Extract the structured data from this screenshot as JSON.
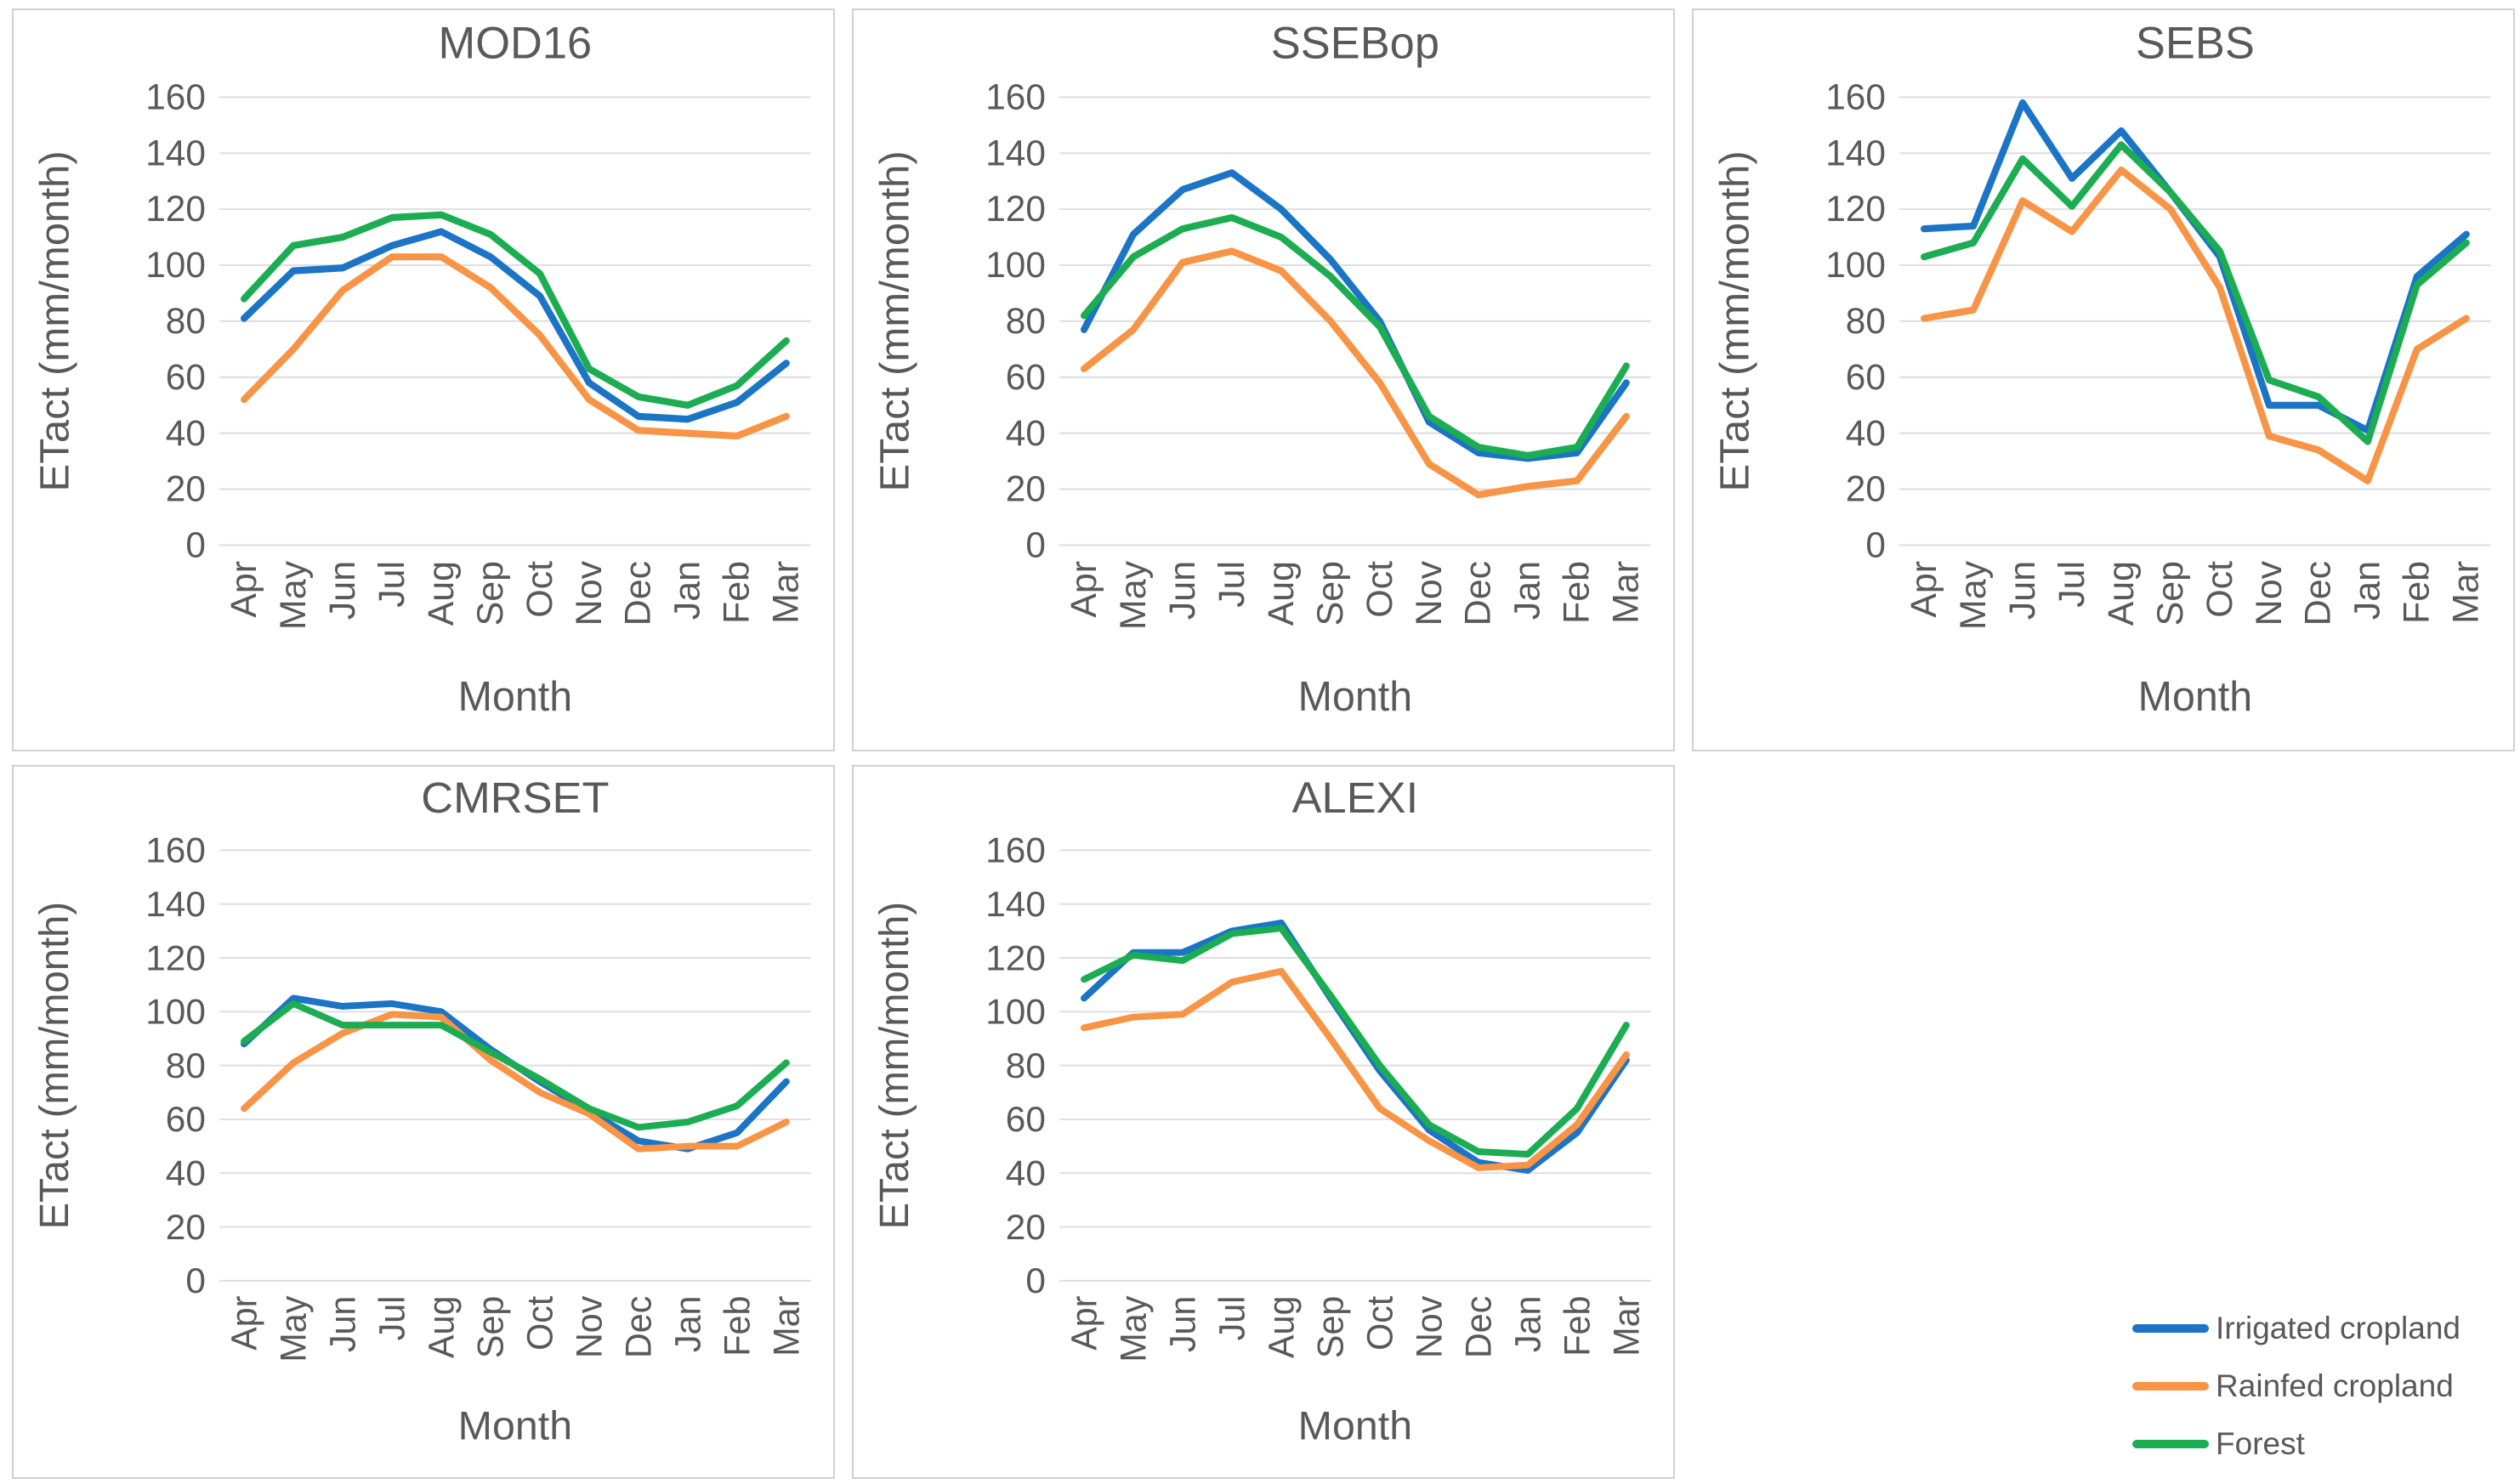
{
  "figure": {
    "background": "#FFFFFF",
    "text_color": "#595959",
    "grid_color": "#DEDEDE",
    "panel_border_color": "#D0D0D0"
  },
  "legend": {
    "position": "bottom-right",
    "items": [
      {
        "label": "Irrigated cropland",
        "color": "#1B74C5"
      },
      {
        "label": "Rainfed cropland",
        "color": "#F79446"
      },
      {
        "label": "Forest",
        "color": "#1CAD52"
      }
    ]
  },
  "chart_data": [
    {
      "type": "line",
      "title": "MOD16",
      "xlabel": "Month",
      "ylabel": "ETact (mm/month)",
      "ylim": [
        0,
        160
      ],
      "yticks": [
        0,
        20,
        40,
        60,
        80,
        100,
        120,
        140,
        160
      ],
      "grid": true,
      "categories": [
        "Apr",
        "May",
        "Jun",
        "Jul",
        "Aug",
        "Sep",
        "Oct",
        "Nov",
        "Dec",
        "Jan",
        "Feb",
        "Mar"
      ],
      "series": [
        {
          "name": "Irrigated cropland",
          "color": "#1B74C5",
          "values": [
            81,
            98,
            99,
            107,
            112,
            103,
            89,
            58,
            46,
            45,
            51,
            65
          ]
        },
        {
          "name": "Rainfed cropland",
          "color": "#F79446",
          "values": [
            52,
            70,
            91,
            103,
            103,
            92,
            75,
            52,
            41,
            40,
            39,
            46
          ]
        },
        {
          "name": "Forest",
          "color": "#1CAD52",
          "values": [
            88,
            107,
            110,
            117,
            118,
            111,
            97,
            63,
            53,
            50,
            57,
            73
          ]
        }
      ]
    },
    {
      "type": "line",
      "title": "SSEBop",
      "xlabel": "Month",
      "ylabel": "ETact (mm/month)",
      "ylim": [
        0,
        160
      ],
      "yticks": [
        0,
        20,
        40,
        60,
        80,
        100,
        120,
        140,
        160
      ],
      "grid": true,
      "categories": [
        "Apr",
        "May",
        "Jun",
        "Jul",
        "Aug",
        "Sep",
        "Oct",
        "Nov",
        "Dec",
        "Jan",
        "Feb",
        "Mar"
      ],
      "series": [
        {
          "name": "Irrigated cropland",
          "color": "#1B74C5",
          "values": [
            77,
            111,
            127,
            133,
            120,
            102,
            80,
            44,
            33,
            31,
            33,
            58
          ]
        },
        {
          "name": "Rainfed cropland",
          "color": "#F79446",
          "values": [
            63,
            77,
            101,
            105,
            98,
            80,
            58,
            29,
            18,
            21,
            23,
            46
          ]
        },
        {
          "name": "Forest",
          "color": "#1CAD52",
          "values": [
            82,
            103,
            113,
            117,
            110,
            96,
            78,
            46,
            35,
            32,
            35,
            64
          ]
        }
      ]
    },
    {
      "type": "line",
      "title": "SEBS",
      "xlabel": "Month",
      "ylabel": "ETact (mm/month)",
      "ylim": [
        0,
        160
      ],
      "yticks": [
        0,
        20,
        40,
        60,
        80,
        100,
        120,
        140,
        160
      ],
      "grid": true,
      "categories": [
        "Apr",
        "May",
        "Jun",
        "Jul",
        "Aug",
        "Sep",
        "Oct",
        "Nov",
        "Dec",
        "Jan",
        "Feb",
        "Mar"
      ],
      "series": [
        {
          "name": "Irrigated cropland",
          "color": "#1B74C5",
          "values": [
            113,
            114,
            158,
            131,
            148,
            126,
            103,
            50,
            50,
            41,
            96,
            111
          ]
        },
        {
          "name": "Rainfed cropland",
          "color": "#F79446",
          "values": [
            81,
            84,
            123,
            112,
            134,
            120,
            92,
            39,
            34,
            23,
            70,
            81
          ]
        },
        {
          "name": "Forest",
          "color": "#1CAD52",
          "values": [
            103,
            108,
            138,
            121,
            143,
            126,
            105,
            59,
            53,
            37,
            93,
            108
          ]
        }
      ]
    },
    {
      "type": "line",
      "title": "CMRSET",
      "xlabel": "Month",
      "ylabel": "ETact (mm/month)",
      "ylim": [
        0,
        160
      ],
      "yticks": [
        0,
        20,
        40,
        60,
        80,
        100,
        120,
        140,
        160
      ],
      "grid": true,
      "categories": [
        "Apr",
        "May",
        "Jun",
        "Jul",
        "Aug",
        "Sep",
        "Oct",
        "Nov",
        "Dec",
        "Jan",
        "Feb",
        "Mar"
      ],
      "series": [
        {
          "name": "Irrigated cropland",
          "color": "#1B74C5",
          "values": [
            88,
            105,
            102,
            103,
            100,
            86,
            74,
            63,
            52,
            49,
            55,
            74
          ]
        },
        {
          "name": "Rainfed cropland",
          "color": "#F79446",
          "values": [
            64,
            81,
            92,
            99,
            98,
            82,
            70,
            62,
            49,
            50,
            50,
            59
          ]
        },
        {
          "name": "Forest",
          "color": "#1CAD52",
          "values": [
            89,
            103,
            95,
            95,
            95,
            85,
            75,
            64,
            57,
            59,
            65,
            81
          ]
        }
      ]
    },
    {
      "type": "line",
      "title": "ALEXI",
      "xlabel": "Month",
      "ylabel": "ETact (mm/month)",
      "ylim": [
        0,
        160
      ],
      "yticks": [
        0,
        20,
        40,
        60,
        80,
        100,
        120,
        140,
        160
      ],
      "grid": true,
      "categories": [
        "Apr",
        "May",
        "Jun",
        "Jul",
        "Aug",
        "Sep",
        "Oct",
        "Nov",
        "Dec",
        "Jan",
        "Feb",
        "Mar"
      ],
      "series": [
        {
          "name": "Irrigated cropland",
          "color": "#1B74C5",
          "values": [
            105,
            122,
            122,
            130,
            133,
            105,
            78,
            56,
            44,
            41,
            55,
            82
          ]
        },
        {
          "name": "Rainfed cropland",
          "color": "#F79446",
          "values": [
            94,
            98,
            99,
            111,
            115,
            90,
            64,
            52,
            42,
            43,
            58,
            84
          ]
        },
        {
          "name": "Forest",
          "color": "#1CAD52",
          "values": [
            112,
            121,
            119,
            129,
            131,
            106,
            80,
            58,
            48,
            47,
            64,
            95
          ]
        }
      ]
    }
  ]
}
